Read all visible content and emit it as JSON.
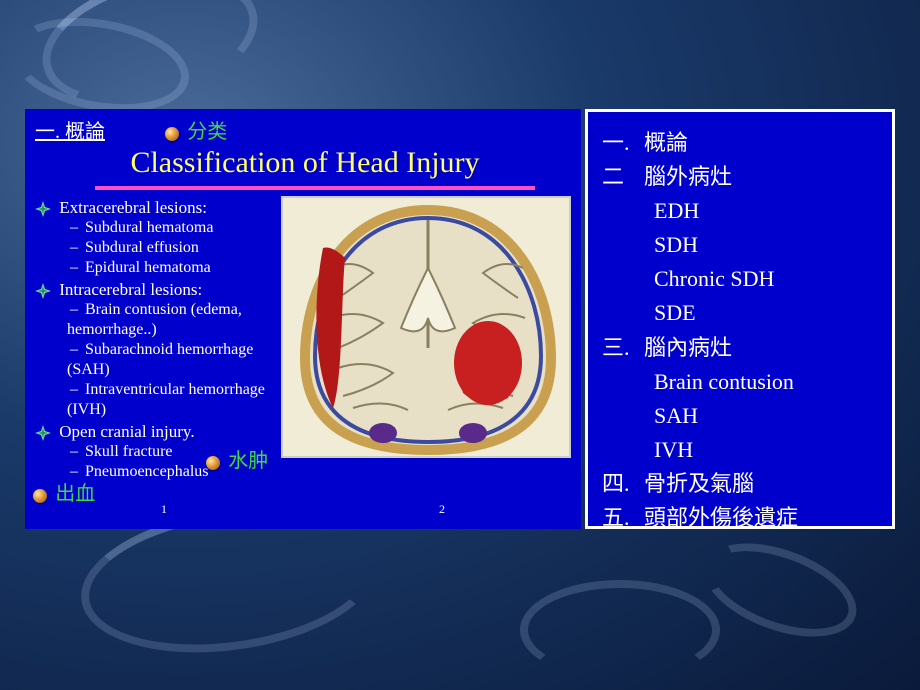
{
  "colors": {
    "slide_bg": "#0000cc",
    "title_text": "#ffff66",
    "accent_line": "#ff4dc4",
    "annotation_text": "#3fd93f",
    "body_text": "#ffffff",
    "right_border": "#ffffff",
    "bullet_gradient": [
      "#ffe8a0",
      "#e6a040",
      "#8a4a10"
    ],
    "brain_bg": "#f1ecd6",
    "page_bg_gradient": [
      "#4a6a9a",
      "#1a3a6a",
      "#0a1a3a"
    ]
  },
  "left": {
    "header_section": "一.  概論",
    "header_annotation": "分类",
    "title": "Classification of Head Injury",
    "sections": [
      {
        "heading": "Extracerebral lesions:",
        "items": [
          "Subdural hematoma",
          "Subdural effusion",
          "Epidural hematoma"
        ]
      },
      {
        "heading": "Intracerebral lesions:",
        "items": [
          "Brain contusion (edema, hemorrhage..)",
          "Subarachnoid hemorrhage (SAH)",
          "Intraventricular hemorrhage (IVH)"
        ]
      },
      {
        "heading": "Open cranial injury.",
        "items": [
          "Skull fracture",
          "Pneumoencephalus"
        ]
      }
    ],
    "annotations": {
      "shuizhong": "水肿",
      "chuxue": "出血"
    },
    "page_numbers": [
      "1",
      "2"
    ],
    "brain_illustration": {
      "type": "anatomical-diagram",
      "view": "coronal-section",
      "tissue_color": "#e8dfc7",
      "sulci_color": "#888060",
      "skull_color": "#c9a050",
      "dura_color": "#3a4aa0",
      "lesion_left": {
        "shape": "crescent",
        "color": "#b21818",
        "side": "left-outer"
      },
      "lesion_right": {
        "shape": "irregular",
        "color": "#c82020",
        "side": "right-parenchyma"
      },
      "basal_vessels_color": "#5a2a8a"
    }
  },
  "right": {
    "rows": [
      {
        "num": "一.",
        "text": "概論",
        "indent": 0
      },
      {
        "num": "二",
        "text": "腦外病灶",
        "indent": 0
      },
      {
        "num": "",
        "text": "EDH",
        "indent": 1
      },
      {
        "num": "",
        "text": "SDH",
        "indent": 1
      },
      {
        "num": "",
        "text": "Chronic SDH",
        "indent": 1
      },
      {
        "num": "",
        "text": "SDE",
        "indent": 1
      },
      {
        "num": "三.",
        "text": "腦內病灶",
        "indent": 0
      },
      {
        "num": "",
        "text": "Brain contusion",
        "indent": 1
      },
      {
        "num": "",
        "text": "SAH",
        "indent": 1
      },
      {
        "num": "",
        "text": "IVH",
        "indent": 1
      },
      {
        "num": "四.",
        "text": "骨折及氣腦",
        "indent": 0
      },
      {
        "num": "五.",
        "text": "頭部外傷後遺症",
        "indent": 0
      }
    ]
  }
}
